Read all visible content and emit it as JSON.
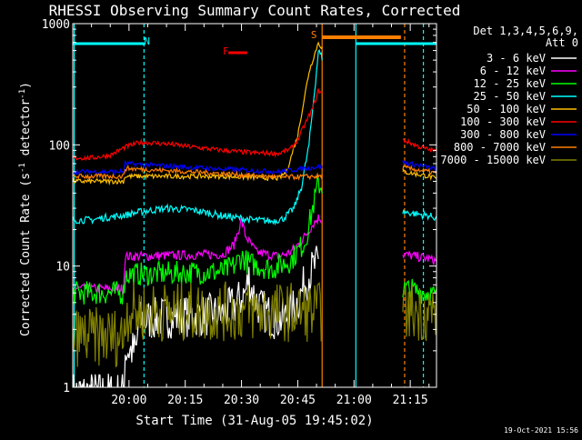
{
  "chart_data": {
    "type": "line",
    "title": "RHESSI Observing Summary Count Rates, Corrected",
    "xlabel": "Start Time (31-Aug-05 19:45:02)",
    "ylabel_prefix": "Corrected Count Rate (s",
    "ylabel_sup1": "-1",
    "ylabel_mid": " detector",
    "ylabel_sup2": "-1",
    "ylabel_suffix": ")",
    "footer": "19-Oct-2021 15:56",
    "xaxis": {
      "start": "19:45",
      "end": "21:22",
      "start_min": 0,
      "end_min": 97
    },
    "yscale": "log",
    "ylim": [
      1,
      1000
    ],
    "y_ticks": [
      {
        "v": 1,
        "label": "1"
      },
      {
        "v": 10,
        "label": "10"
      },
      {
        "v": 100,
        "label": "100"
      },
      {
        "v": 1000,
        "label": "1000"
      }
    ],
    "x_ticks": [
      {
        "t": 15,
        "label": "20:00"
      },
      {
        "t": 30,
        "label": "20:15"
      },
      {
        "t": 45,
        "label": "20:30"
      },
      {
        "t": 60,
        "label": "20:45"
      },
      {
        "t": 75,
        "label": "21:00"
      },
      {
        "t": 90,
        "label": "21:15"
      }
    ],
    "legend": {
      "header_line1": "Det 1,3,4,5,6,9,",
      "header_line2": "Att 0",
      "placement": "right",
      "entries": [
        {
          "label": "3 - 6 keV",
          "color": "#ffffff"
        },
        {
          "label": "6 - 12 keV",
          "color": "#ff00ff"
        },
        {
          "label": "12 - 25 keV",
          "color": "#00ff00"
        },
        {
          "label": "25 - 50 keV",
          "color": "#00ffff"
        },
        {
          "label": "50 - 100 keV",
          "color": "#ffbf00"
        },
        {
          "label": "100 - 300 keV",
          "color": "#ff0000"
        },
        {
          "label": "300 - 800 keV",
          "color": "#0000ff"
        },
        {
          "label": "800 - 7000 keV",
          "color": "#ff7f00"
        },
        {
          "label": "7000 - 15000 keV",
          "color": "#808000"
        }
      ]
    },
    "annotations": [
      {
        "letter": "N",
        "color": "#00ffff",
        "t": 19
      },
      {
        "letter": "S",
        "color": "#ff7f00",
        "t": 63.5
      },
      {
        "letter": "F",
        "color": "#ff0000",
        "t": 40
      }
    ],
    "gaps": [
      {
        "from": 66.5,
        "to": 88
      }
    ],
    "series": [
      {
        "name": "3 - 6 keV",
        "color": "#ffffff",
        "noise": 0.18,
        "points": [
          [
            0,
            0.9
          ],
          [
            13.5,
            0.9
          ],
          [
            14,
            2
          ],
          [
            17,
            2
          ],
          [
            17.5,
            3.5
          ],
          [
            25,
            3.8
          ],
          [
            40,
            4
          ],
          [
            44,
            5
          ],
          [
            46,
            6
          ],
          [
            47,
            8
          ],
          [
            48,
            6
          ],
          [
            50,
            4.5
          ],
          [
            53,
            3.8
          ],
          [
            56,
            3.6
          ],
          [
            59,
            4.5
          ],
          [
            61,
            6
          ],
          [
            62.5,
            8
          ],
          [
            64.5,
            10
          ],
          [
            65.5,
            10
          ]
        ]
      },
      {
        "name": "6 - 12 keV",
        "color": "#ff00ff",
        "noise": 0.04,
        "points": [
          [
            0,
            6.5
          ],
          [
            13.5,
            6.5
          ],
          [
            14,
            12
          ],
          [
            40,
            12.5
          ],
          [
            43,
            15
          ],
          [
            45,
            24
          ],
          [
            46,
            18
          ],
          [
            47,
            16
          ],
          [
            49,
            13
          ],
          [
            55,
            12
          ],
          [
            58,
            13
          ],
          [
            61,
            16
          ],
          [
            64,
            22
          ],
          [
            65.5,
            25
          ],
          [
            88,
            12.5
          ],
          [
            95,
            11.5
          ],
          [
            97,
            11
          ]
        ]
      },
      {
        "name": "12 - 25 keV",
        "color": "#00ff00",
        "noise": 0.1,
        "points": [
          [
            0,
            6
          ],
          [
            13.5,
            6
          ],
          [
            14,
            8.5
          ],
          [
            40,
            9
          ],
          [
            43,
            10
          ],
          [
            45,
            12
          ],
          [
            47,
            10.5
          ],
          [
            53,
            9.5
          ],
          [
            58,
            11
          ],
          [
            62,
            16
          ],
          [
            64,
            30
          ],
          [
            65.5,
            48
          ],
          [
            88,
            6.5
          ],
          [
            95,
            6
          ],
          [
            97,
            5.5
          ]
        ]
      },
      {
        "name": "25 - 50 keV",
        "color": "#00ffff",
        "noise": 0.03,
        "points": [
          [
            0,
            24
          ],
          [
            5,
            24
          ],
          [
            8,
            25
          ],
          [
            13,
            26
          ],
          [
            18,
            28
          ],
          [
            25,
            30
          ],
          [
            32,
            29
          ],
          [
            40,
            26
          ],
          [
            48,
            24
          ],
          [
            53,
            23.5
          ],
          [
            56,
            24.5
          ],
          [
            59,
            30
          ],
          [
            61,
            45
          ],
          [
            63,
            100
          ],
          [
            65,
            400
          ],
          [
            65.5,
            600
          ],
          [
            88,
            28
          ],
          [
            95,
            26
          ],
          [
            97,
            25
          ]
        ]
      },
      {
        "name": "50 - 100 keV",
        "color": "#ffbf00",
        "noise": 0.02,
        "points": [
          [
            0,
            50
          ],
          [
            13.5,
            50
          ],
          [
            14,
            55
          ],
          [
            40,
            55
          ],
          [
            55,
            53
          ],
          [
            57,
            60
          ],
          [
            60,
            120
          ],
          [
            63,
            400
          ],
          [
            65.5,
            700
          ],
          [
            88,
            60
          ],
          [
            95,
            55
          ],
          [
            97,
            52
          ]
        ]
      },
      {
        "name": "100 - 300 keV",
        "color": "#ff0000",
        "noise": 0.02,
        "points": [
          [
            0,
            78
          ],
          [
            5,
            78
          ],
          [
            10,
            82
          ],
          [
            14,
            96
          ],
          [
            18,
            105
          ],
          [
            25,
            102
          ],
          [
            32,
            96
          ],
          [
            40,
            90
          ],
          [
            48,
            86
          ],
          [
            55,
            85
          ],
          [
            58,
            92
          ],
          [
            60,
            110
          ],
          [
            62,
            150
          ],
          [
            64,
            200
          ],
          [
            65.5,
            280
          ],
          [
            88,
            110
          ],
          [
            93,
            95
          ],
          [
            97,
            88
          ]
        ]
      },
      {
        "name": "300 - 800 keV",
        "color": "#0000ff",
        "noise": 0.02,
        "points": [
          [
            0,
            60
          ],
          [
            13.5,
            60
          ],
          [
            14,
            70
          ],
          [
            40,
            63
          ],
          [
            55,
            60
          ],
          [
            65.5,
            66
          ],
          [
            88,
            72
          ],
          [
            95,
            65
          ],
          [
            97,
            63
          ]
        ]
      },
      {
        "name": "800 - 7000 keV",
        "color": "#ff7f00",
        "noise": 0.02,
        "points": [
          [
            0,
            55
          ],
          [
            13.5,
            55
          ],
          [
            14,
            64
          ],
          [
            40,
            58
          ],
          [
            55,
            54
          ],
          [
            65.5,
            55
          ],
          [
            88,
            65
          ],
          [
            95,
            60
          ],
          [
            97,
            58
          ]
        ]
      },
      {
        "name": "7000 - 15000 keV",
        "color": "#808000",
        "noise": 0.25,
        "points": [
          [
            0,
            2.6
          ],
          [
            13.5,
            2.6
          ],
          [
            14,
            4.2
          ],
          [
            97,
            4.2
          ]
        ]
      }
    ]
  }
}
